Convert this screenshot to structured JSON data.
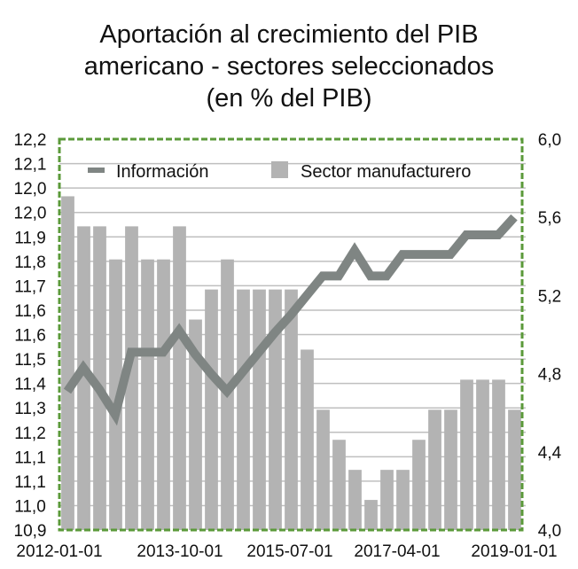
{
  "chart_data": {
    "type": "bar+line",
    "title": [
      "Aportación al crecimiento del PIB",
      "americano - sectores seleccionados",
      "(en % del PIB)"
    ],
    "x_tick_labels": [
      "2012-01-01",
      "2013-10-01",
      "2015-07-01",
      "2017-04-01",
      "2019-01-01"
    ],
    "categories": [
      "2012-01-01",
      "2012-04-01",
      "2012-07-01",
      "2012-10-01",
      "2013-01-01",
      "2013-04-01",
      "2013-07-01",
      "2013-10-01",
      "2014-01-01",
      "2014-04-01",
      "2014-07-01",
      "2014-10-01",
      "2015-01-01",
      "2015-04-01",
      "2015-07-01",
      "2015-10-01",
      "2016-01-01",
      "2016-04-01",
      "2016-07-01",
      "2016-10-01",
      "2017-01-01",
      "2017-04-01",
      "2017-07-01",
      "2017-10-01",
      "2018-01-01",
      "2018-04-01",
      "2018-07-01",
      "2018-10-01",
      "2019-01-01"
    ],
    "left_axis": {
      "ylim": [
        10.9,
        12.2
      ],
      "tick_labels": [
        "12,2",
        "12,1",
        "12,0",
        "12,0",
        "11,9",
        "11,8",
        "11,7",
        "11,6",
        "11,6",
        "11,5",
        "11,4",
        "11,3",
        "11,2",
        "11,1",
        "11,1",
        "11,0",
        "10,9"
      ]
    },
    "right_axis": {
      "ylim": [
        4.0,
        6.0
      ],
      "tick_labels": [
        "6,0",
        "5,6",
        "5,2",
        "4,8",
        "4,4",
        "4,0"
      ],
      "tick_values": [
        6.0,
        5.6,
        5.2,
        4.8,
        4.4,
        4.0
      ]
    },
    "grid": true,
    "legend_position": "top",
    "series": [
      {
        "name": "Información",
        "type": "line",
        "axis": "right",
        "color": "#7f8583",
        "values": [
          4.71,
          4.83,
          4.72,
          4.59,
          4.91,
          4.91,
          4.91,
          5.02,
          4.9,
          4.8,
          4.71,
          4.81,
          4.91,
          5.01,
          5.1,
          5.2,
          5.3,
          5.3,
          5.43,
          5.3,
          5.3,
          5.41,
          5.41,
          5.41,
          5.41,
          5.51,
          5.51,
          5.51,
          5.6
        ]
      },
      {
        "name": "Sector manufacturero",
        "type": "bar",
        "axis": "left",
        "color": "#b3b3b3",
        "values": [
          12.01,
          11.91,
          11.91,
          11.8,
          11.91,
          11.8,
          11.8,
          11.91,
          11.6,
          11.7,
          11.8,
          11.7,
          11.7,
          11.7,
          11.7,
          11.5,
          11.3,
          11.2,
          11.1,
          11.0,
          11.1,
          11.1,
          11.2,
          11.3,
          11.3,
          11.4,
          11.4,
          11.4,
          11.3
        ]
      }
    ],
    "colors": {
      "border": "#5b9a3a",
      "grid": "#bfbfbf"
    }
  }
}
